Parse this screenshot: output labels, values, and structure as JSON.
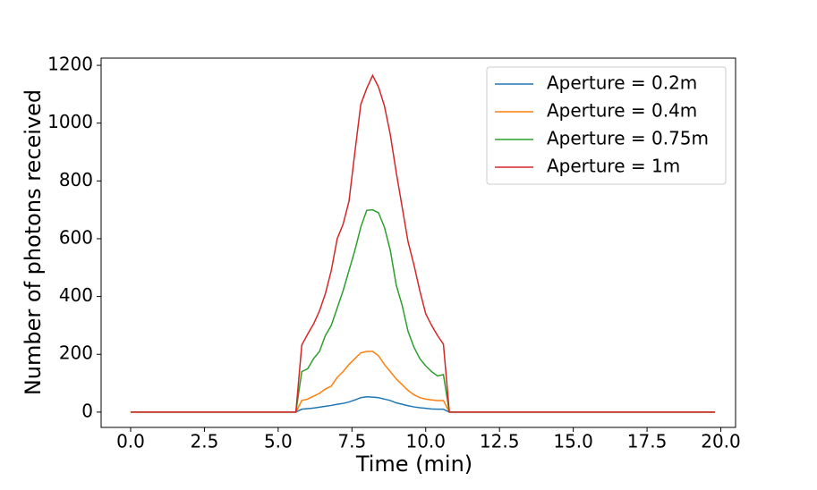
{
  "chart_data": {
    "type": "line",
    "xlabel": "Time (min)",
    "ylabel": "Number of photons received",
    "x": [
      0,
      5.6,
      5.8,
      6.0,
      6.2,
      6.4,
      6.6,
      6.8,
      7.0,
      7.2,
      7.4,
      7.6,
      7.8,
      8.0,
      8.2,
      8.4,
      8.6,
      8.8,
      9.0,
      9.2,
      9.4,
      9.6,
      9.8,
      10.0,
      10.2,
      10.4,
      10.6,
      10.8,
      19.8
    ],
    "series": [
      {
        "name": "Aperture = 0.2m",
        "color": "#1f77b4",
        "values": [
          0,
          0,
          10,
          12,
          14,
          17,
          20,
          23,
          27,
          30,
          35,
          42,
          50,
          53,
          52,
          50,
          45,
          40,
          32,
          27,
          22,
          18,
          15,
          13,
          11,
          10,
          10,
          0,
          0
        ]
      },
      {
        "name": "Aperture = 0.4m",
        "color": "#ff7f0e",
        "values": [
          0,
          0,
          40,
          45,
          55,
          65,
          80,
          90,
          120,
          140,
          165,
          185,
          205,
          210,
          210,
          195,
          165,
          140,
          115,
          95,
          75,
          60,
          50,
          45,
          42,
          40,
          40,
          0,
          0
        ]
      },
      {
        "name": "Aperture = 0.75m",
        "color": "#2ca02c",
        "values": [
          0,
          0,
          140,
          150,
          185,
          210,
          265,
          300,
          360,
          420,
          490,
          560,
          640,
          698,
          700,
          690,
          640,
          560,
          440,
          370,
          280,
          225,
          185,
          160,
          140,
          125,
          130,
          0,
          0
        ]
      },
      {
        "name": "Aperture = 1m",
        "color": "#d62728",
        "values": [
          0,
          0,
          232,
          270,
          305,
          350,
          410,
          490,
          600,
          650,
          730,
          900,
          1065,
          1120,
          1165,
          1125,
          1060,
          960,
          830,
          710,
          590,
          510,
          420,
          340,
          300,
          265,
          235,
          0,
          0
        ]
      }
    ],
    "xlim": [
      -1,
      20.5
    ],
    "ylim": [
      -53,
      1225
    ],
    "xticks": [
      {
        "value": 0,
        "label": "0.0"
      },
      {
        "value": 2.5,
        "label": "2.5"
      },
      {
        "value": 5,
        "label": "5.0"
      },
      {
        "value": 7.5,
        "label": "7.5"
      },
      {
        "value": 10,
        "label": "10.0"
      },
      {
        "value": 12.5,
        "label": "12.5"
      },
      {
        "value": 15,
        "label": "15.0"
      },
      {
        "value": 17.5,
        "label": "17.5"
      },
      {
        "value": 20,
        "label": "20.0"
      }
    ],
    "yticks": [
      0,
      200,
      400,
      600,
      800,
      1000,
      1200
    ],
    "grid": false,
    "legend": "upper right"
  }
}
